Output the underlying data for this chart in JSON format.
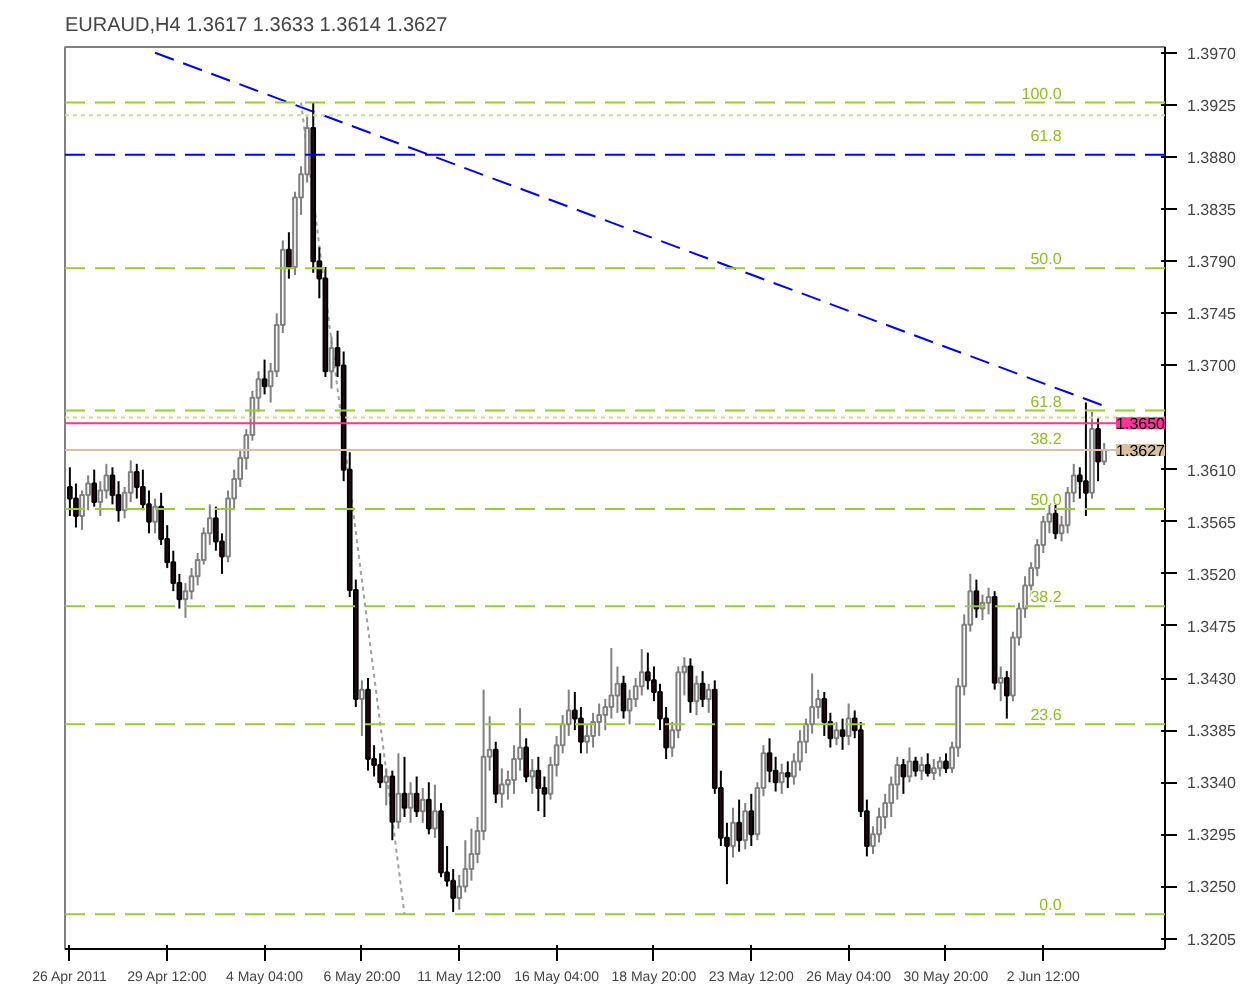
{
  "chart_data": {
    "type": "candlestick",
    "title": "EURAUD,H4  1.3617 1.3633 1.3614 1.3627",
    "categories": [
      "26 Apr 2011",
      null,
      null,
      null,
      null,
      null,
      null,
      null,
      null,
      null,
      null,
      null,
      null,
      null,
      null,
      null,
      "29 Apr 12:00",
      null,
      null,
      null,
      null,
      null,
      null,
      null,
      null,
      null,
      null,
      null,
      null,
      null,
      null,
      null,
      "4 May 04:00",
      null,
      null,
      null,
      null,
      null,
      null,
      null,
      null,
      null,
      null,
      null,
      null,
      null,
      null,
      null,
      "6 May 20:00",
      null,
      null,
      null,
      null,
      null,
      null,
      null,
      null,
      null,
      null,
      null,
      null,
      null,
      null,
      null,
      "11 May 12:00",
      null,
      null,
      null,
      null,
      null,
      null,
      null,
      null,
      null,
      null,
      null,
      null,
      null,
      null,
      null,
      "16 May 04:00",
      null,
      null,
      null,
      null,
      null,
      null,
      null,
      null,
      null,
      null,
      null,
      null,
      null,
      null,
      null,
      "18 May 20:00",
      null,
      null,
      null,
      null,
      null,
      null,
      null,
      null,
      null,
      null,
      null,
      null,
      null,
      null,
      null,
      "23 May 12:00",
      null,
      null,
      null,
      null,
      null,
      null,
      null,
      null,
      null,
      null,
      null,
      null,
      null,
      null,
      null,
      "26 May 04:00",
      null,
      null,
      null,
      null,
      null,
      null,
      null,
      null,
      null,
      null,
      null,
      null,
      null,
      null,
      null,
      "30 May 20:00",
      null,
      null,
      null,
      null,
      null,
      null,
      null,
      null,
      null,
      null,
      null,
      null,
      null,
      null,
      null,
      "2 Jun 12:00",
      null,
      null,
      null,
      null,
      null,
      null,
      null,
      null,
      null,
      null
    ],
    "ohlc": [
      [
        1.3595,
        1.3612,
        1.357,
        1.3585
      ],
      [
        1.3585,
        1.3598,
        1.356,
        1.357
      ],
      [
        1.357,
        1.3592,
        1.3558,
        1.3588
      ],
      [
        1.3588,
        1.3605,
        1.3575,
        1.3598
      ],
      [
        1.3598,
        1.361,
        1.3578,
        1.3582
      ],
      [
        1.3582,
        1.36,
        1.357,
        1.3592
      ],
      [
        1.3592,
        1.3615,
        1.3585,
        1.3605
      ],
      [
        1.3605,
        1.3612,
        1.358,
        1.3588
      ],
      [
        1.3588,
        1.36,
        1.3565,
        1.3575
      ],
      [
        1.3575,
        1.3595,
        1.3568,
        1.359
      ],
      [
        1.359,
        1.3618,
        1.3582,
        1.3608
      ],
      [
        1.3608,
        1.3615,
        1.3585,
        1.3595
      ],
      [
        1.3595,
        1.361,
        1.3575,
        1.358
      ],
      [
        1.358,
        1.3592,
        1.3555,
        1.3565
      ],
      [
        1.3565,
        1.3585,
        1.3555,
        1.3578
      ],
      [
        1.3578,
        1.359,
        1.3545,
        1.355
      ],
      [
        1.355,
        1.3562,
        1.3525,
        1.353
      ],
      [
        1.353,
        1.354,
        1.3505,
        1.3512
      ],
      [
        1.3512,
        1.352,
        1.349,
        1.3498
      ],
      [
        1.3498,
        1.3512,
        1.3482,
        1.3505
      ],
      [
        1.3505,
        1.3525,
        1.3498,
        1.3518
      ],
      [
        1.3518,
        1.3538,
        1.351,
        1.3532
      ],
      [
        1.3532,
        1.356,
        1.3528,
        1.3555
      ],
      [
        1.3555,
        1.358,
        1.3545,
        1.3568
      ],
      [
        1.3568,
        1.3578,
        1.354,
        1.3548
      ],
      [
        1.3548,
        1.3555,
        1.352,
        1.3535
      ],
      [
        1.3535,
        1.3592,
        1.353,
        1.3585
      ],
      [
        1.3585,
        1.361,
        1.3575,
        1.3602
      ],
      [
        1.3602,
        1.3628,
        1.3595,
        1.362
      ],
      [
        1.362,
        1.3645,
        1.361,
        1.364
      ],
      [
        1.364,
        1.3678,
        1.3635,
        1.3672
      ],
      [
        1.3672,
        1.3695,
        1.366,
        1.3688
      ],
      [
        1.3688,
        1.3705,
        1.3675,
        1.3682
      ],
      [
        1.3682,
        1.3702,
        1.3668,
        1.3695
      ],
      [
        1.3695,
        1.3745,
        1.369,
        1.3735
      ],
      [
        1.3735,
        1.3808,
        1.3728,
        1.38
      ],
      [
        1.38,
        1.3815,
        1.3775,
        1.3785
      ],
      [
        1.3785,
        1.385,
        1.3778,
        1.3845
      ],
      [
        1.3845,
        1.3872,
        1.383,
        1.3865
      ],
      [
        1.3865,
        1.3915,
        1.3858,
        1.3905
      ],
      [
        1.3905,
        1.3927,
        1.378,
        1.379
      ],
      [
        1.379,
        1.3802,
        1.3758,
        1.3775
      ],
      [
        1.3775,
        1.3785,
        1.369,
        1.3695
      ],
      [
        1.3695,
        1.3725,
        1.368,
        1.3715
      ],
      [
        1.3715,
        1.373,
        1.369,
        1.37
      ],
      [
        1.37,
        1.3712,
        1.36,
        1.361
      ],
      [
        1.361,
        1.3625,
        1.35,
        1.3506
      ],
      [
        1.3506,
        1.3515,
        1.3405,
        1.3412
      ],
      [
        1.3412,
        1.3428,
        1.338,
        1.342
      ],
      [
        1.342,
        1.343,
        1.335,
        1.336
      ],
      [
        1.336,
        1.3372,
        1.3345,
        1.3355
      ],
      [
        1.3355,
        1.3365,
        1.3335,
        1.334
      ],
      [
        1.334,
        1.3352,
        1.332,
        1.3345
      ],
      [
        1.3345,
        1.335,
        1.329,
        1.3306
      ],
      [
        1.3306,
        1.3365,
        1.33,
        1.333
      ],
      [
        1.333,
        1.3362,
        1.331,
        1.3318
      ],
      [
        1.3318,
        1.334,
        1.3305,
        1.333
      ],
      [
        1.333,
        1.3345,
        1.331,
        1.3315
      ],
      [
        1.3315,
        1.3335,
        1.3305,
        1.3325
      ],
      [
        1.3325,
        1.334,
        1.3295,
        1.33
      ],
      [
        1.33,
        1.3338,
        1.3292,
        1.3315
      ],
      [
        1.3315,
        1.3322,
        1.3258,
        1.3262
      ],
      [
        1.3262,
        1.3285,
        1.325,
        1.3255
      ],
      [
        1.3255,
        1.3265,
        1.3228,
        1.324
      ],
      [
        1.324,
        1.326,
        1.323,
        1.325
      ],
      [
        1.325,
        1.329,
        1.3245,
        1.3265
      ],
      [
        1.3265,
        1.33,
        1.3255,
        1.3278
      ],
      [
        1.3278,
        1.331,
        1.327,
        1.3298
      ],
      [
        1.3298,
        1.342,
        1.329,
        1.3362
      ],
      [
        1.3362,
        1.3397,
        1.335,
        1.3368
      ],
      [
        1.3368,
        1.3375,
        1.3322,
        1.333
      ],
      [
        1.333,
        1.3352,
        1.3318,
        1.3338
      ],
      [
        1.3338,
        1.335,
        1.3325,
        1.3342
      ],
      [
        1.3342,
        1.3372,
        1.333,
        1.336
      ],
      [
        1.336,
        1.3404,
        1.335,
        1.337
      ],
      [
        1.337,
        1.3378,
        1.334,
        1.3345
      ],
      [
        1.3345,
        1.336,
        1.333,
        1.335
      ],
      [
        1.335,
        1.3362,
        1.3315,
        1.3335
      ],
      [
        1.3335,
        1.3345,
        1.331,
        1.333
      ],
      [
        1.333,
        1.3362,
        1.3325,
        1.3355
      ],
      [
        1.3355,
        1.338,
        1.3345,
        1.3372
      ],
      [
        1.3372,
        1.3398,
        1.3365,
        1.339
      ],
      [
        1.339,
        1.342,
        1.338,
        1.3402
      ],
      [
        1.3402,
        1.3418,
        1.3385,
        1.3395
      ],
      [
        1.3395,
        1.3405,
        1.3365,
        1.3375
      ],
      [
        1.3375,
        1.339,
        1.3365,
        1.338
      ],
      [
        1.338,
        1.34,
        1.337,
        1.3392
      ],
      [
        1.3392,
        1.3408,
        1.338,
        1.3398
      ],
      [
        1.3398,
        1.3412,
        1.3385,
        1.3405
      ],
      [
        1.3405,
        1.3456,
        1.3395,
        1.3415
      ],
      [
        1.3415,
        1.344,
        1.34,
        1.3425
      ],
      [
        1.3425,
        1.3432,
        1.3395,
        1.3402
      ],
      [
        1.3402,
        1.342,
        1.339,
        1.3412
      ],
      [
        1.3412,
        1.343,
        1.3405,
        1.3423
      ],
      [
        1.3423,
        1.3455,
        1.3415,
        1.3435
      ],
      [
        1.3435,
        1.3452,
        1.342,
        1.3428
      ],
      [
        1.3428,
        1.344,
        1.341,
        1.3418
      ],
      [
        1.3418,
        1.3425,
        1.3385,
        1.3395
      ],
      [
        1.3395,
        1.3405,
        1.336,
        1.337
      ],
      [
        1.337,
        1.3392,
        1.3362,
        1.3385
      ],
      [
        1.3385,
        1.344,
        1.3378,
        1.3435
      ],
      [
        1.3435,
        1.3448,
        1.3415,
        1.344
      ],
      [
        1.344,
        1.3447,
        1.34,
        1.341
      ],
      [
        1.341,
        1.3432,
        1.3398,
        1.3425
      ],
      [
        1.3425,
        1.3436,
        1.3405,
        1.3412
      ],
      [
        1.3412,
        1.3425,
        1.34,
        1.342
      ],
      [
        1.342,
        1.3428,
        1.333,
        1.3335
      ],
      [
        1.3335,
        1.335,
        1.3285,
        1.3292
      ],
      [
        1.3292,
        1.3305,
        1.3252,
        1.3285
      ],
      [
        1.3285,
        1.3318,
        1.3275,
        1.3305
      ],
      [
        1.3305,
        1.3325,
        1.328,
        1.329
      ],
      [
        1.329,
        1.3322,
        1.3282,
        1.3315
      ],
      [
        1.3315,
        1.333,
        1.3285,
        1.3295
      ],
      [
        1.3295,
        1.334,
        1.329,
        1.3335
      ],
      [
        1.3335,
        1.3372,
        1.3328,
        1.3365
      ],
      [
        1.3365,
        1.3378,
        1.334,
        1.335
      ],
      [
        1.335,
        1.3362,
        1.3332,
        1.334
      ],
      [
        1.334,
        1.3356,
        1.333,
        1.3348
      ],
      [
        1.3348,
        1.3358,
        1.3335,
        1.3345
      ],
      [
        1.3345,
        1.3365,
        1.3338,
        1.3358
      ],
      [
        1.3358,
        1.3385,
        1.335,
        1.3375
      ],
      [
        1.3375,
        1.3395,
        1.3365,
        1.339
      ],
      [
        1.339,
        1.3434,
        1.3382,
        1.3405
      ],
      [
        1.3405,
        1.342,
        1.3395,
        1.3412
      ],
      [
        1.3412,
        1.3418,
        1.338,
        1.3392
      ],
      [
        1.3392,
        1.34,
        1.337,
        1.3378
      ],
      [
        1.3378,
        1.3392,
        1.3372,
        1.3385
      ],
      [
        1.3385,
        1.3395,
        1.3368,
        1.338
      ],
      [
        1.338,
        1.3408,
        1.3372,
        1.3395
      ],
      [
        1.3395,
        1.3402,
        1.3378,
        1.3385
      ],
      [
        1.3385,
        1.3392,
        1.331,
        1.3315
      ],
      [
        1.3315,
        1.3325,
        1.3276,
        1.3285
      ],
      [
        1.3285,
        1.3302,
        1.3278,
        1.3295
      ],
      [
        1.3295,
        1.3318,
        1.3288,
        1.331
      ],
      [
        1.331,
        1.333,
        1.33,
        1.3322
      ],
      [
        1.3322,
        1.3345,
        1.331,
        1.3338
      ],
      [
        1.3338,
        1.3362,
        1.3325,
        1.3355
      ],
      [
        1.3355,
        1.336,
        1.333,
        1.3345
      ],
      [
        1.3345,
        1.337,
        1.334,
        1.3358
      ],
      [
        1.3358,
        1.3362,
        1.3345,
        1.335
      ],
      [
        1.335,
        1.3362,
        1.3342,
        1.3355
      ],
      [
        1.3355,
        1.3365,
        1.3345,
        1.3348
      ],
      [
        1.3348,
        1.336,
        1.3342,
        1.3352
      ],
      [
        1.3352,
        1.3362,
        1.3345,
        1.3358
      ],
      [
        1.3358,
        1.3365,
        1.3348,
        1.3352
      ],
      [
        1.3352,
        1.3375,
        1.3348,
        1.337
      ],
      [
        1.337,
        1.343,
        1.3362,
        1.3423
      ],
      [
        1.3423,
        1.3485,
        1.3415,
        1.3476
      ],
      [
        1.3476,
        1.352,
        1.347,
        1.3505
      ],
      [
        1.3505,
        1.3515,
        1.3482,
        1.349
      ],
      [
        1.349,
        1.3502,
        1.348,
        1.3495
      ],
      [
        1.3495,
        1.3508,
        1.3485,
        1.35
      ],
      [
        1.35,
        1.3505,
        1.342,
        1.3426
      ],
      [
        1.3426,
        1.344,
        1.341,
        1.343
      ],
      [
        1.343,
        1.3436,
        1.3395,
        1.3415
      ],
      [
        1.3415,
        1.347,
        1.341,
        1.3465
      ],
      [
        1.3465,
        1.3495,
        1.3458,
        1.349
      ],
      [
        1.349,
        1.3518,
        1.3482,
        1.351
      ],
      [
        1.351,
        1.353,
        1.35,
        1.3525
      ],
      [
        1.3525,
        1.355,
        1.3518,
        1.3545
      ],
      [
        1.3545,
        1.357,
        1.3538,
        1.3565
      ],
      [
        1.3565,
        1.3582,
        1.3555,
        1.3572
      ],
      [
        1.3572,
        1.358,
        1.355,
        1.3555
      ],
      [
        1.3555,
        1.357,
        1.3548,
        1.3562
      ],
      [
        1.3562,
        1.3595,
        1.3555,
        1.359
      ],
      [
        1.359,
        1.3615,
        1.3582,
        1.3605
      ],
      [
        1.3605,
        1.3612,
        1.3585,
        1.36
      ],
      [
        1.36,
        1.3668,
        1.357,
        1.359
      ],
      [
        1.359,
        1.366,
        1.3585,
        1.3645
      ],
      [
        1.3645,
        1.3655,
        1.36,
        1.3617
      ],
      [
        1.3617,
        1.3633,
        1.3614,
        1.3627
      ]
    ],
    "series": [
      {
        "type": "line",
        "color": "#0000ff",
        "line_style": "dashed",
        "values": [
          null,
          null,
          null,
          null,
          null,
          null,
          null,
          null,
          null,
          null,
          null,
          null,
          null,
          null,
          1.397,
          null,
          null,
          null,
          null,
          null,
          null,
          null,
          null,
          null,
          null,
          null,
          null,
          null,
          null,
          null,
          null,
          null,
          null,
          null,
          null,
          null,
          null,
          null,
          null,
          null,
          null,
          null,
          null,
          null,
          null,
          null,
          null,
          null,
          null,
          null,
          null,
          null,
          null,
          null,
          null,
          null,
          null,
          null,
          null,
          null,
          null,
          null,
          null,
          null,
          null,
          null,
          null,
          null,
          null,
          null,
          null,
          null,
          null,
          null,
          null,
          null,
          null,
          null,
          null,
          null,
          null,
          null,
          null,
          null,
          null,
          null,
          null,
          null,
          null,
          null,
          null,
          null,
          null,
          null,
          null,
          null,
          null,
          null,
          null,
          null,
          null,
          null,
          null,
          null,
          null,
          null,
          null,
          null,
          null,
          null,
          null,
          null,
          null,
          null,
          null,
          null,
          null,
          null,
          null,
          null,
          null,
          null,
          null,
          null,
          null,
          null,
          null,
          null,
          null,
          null,
          null,
          null,
          null,
          null,
          null,
          null,
          null,
          null,
          null,
          null,
          null,
          null,
          null,
          null,
          null,
          null,
          null,
          null,
          null,
          null,
          null,
          null,
          null,
          null,
          null,
          null,
          null,
          null,
          null,
          null,
          null,
          null,
          null,
          null,
          null,
          null,
          null,
          null,
          null,
          null,
          1.3665
        ]
      },
      {
        "type": "line",
        "color": "#a0a0a0",
        "line_style": "dotted",
        "values": [
          null,
          null,
          null,
          null,
          null,
          null,
          null,
          null,
          null,
          null,
          null,
          null,
          null,
          null,
          null,
          null,
          null,
          null,
          null,
          null,
          null,
          null,
          null,
          null,
          null,
          null,
          null,
          null,
          null,
          null,
          null,
          null,
          null,
          null,
          null,
          null,
          null,
          null,
          1.3927,
          null,
          null,
          null,
          null,
          null,
          null,
          null,
          null,
          null,
          null,
          null,
          null,
          null,
          null,
          null,
          null,
          1.3226,
          null,
          null,
          null,
          null,
          null,
          null,
          null,
          null,
          null,
          null,
          null,
          null,
          null,
          null,
          null,
          null,
          null,
          null,
          null,
          null,
          null,
          null,
          null,
          null,
          null,
          null,
          null,
          null,
          null,
          null,
          null,
          null,
          null,
          null,
          null,
          null,
          null,
          null,
          null,
          null,
          null,
          null,
          null,
          null,
          null,
          null,
          null,
          null,
          null,
          null,
          null,
          null,
          null,
          null,
          null,
          null,
          null,
          null,
          null,
          null,
          null,
          null,
          null,
          null,
          null,
          null,
          null,
          null,
          null,
          null,
          null,
          null,
          null,
          null,
          null,
          null,
          null,
          null,
          null,
          null,
          null,
          null,
          null,
          null,
          null,
          null,
          null,
          null,
          null,
          null,
          null,
          null,
          null,
          null,
          null,
          null,
          null,
          null,
          null,
          null,
          null,
          null,
          null,
          null,
          null,
          null,
          null,
          null,
          null,
          null,
          null,
          null,
          null,
          null,
          null
        ]
      }
    ],
    "annotations": [
      {
        "text": "100.0",
        "y": 1.3927
      },
      {
        "text": "61.8",
        "y": 1.3916
      },
      {
        "text": "50.0",
        "y": 1.3784
      },
      {
        "text": "61.8",
        "y": 1.3661
      },
      {
        "text": "38.2",
        "y": 1.3655
      },
      {
        "text": "50.0",
        "y": 1.3576
      },
      {
        "text": "38.2",
        "y": 1.3492
      },
      {
        "text": "23.6",
        "y": 1.339
      },
      {
        "text": "0.0",
        "y": 1.3226
      }
    ],
    "ylim": [
      1.3196,
      1.3975
    ],
    "yticks": [
      {
        "value": 1.3205,
        "label": "1.3205"
      },
      {
        "value": 1.325,
        "label": "1.3250"
      },
      {
        "value": 1.3295,
        "label": "1.3295"
      },
      {
        "value": 1.334,
        "label": "1.3340"
      },
      {
        "value": 1.3385,
        "label": "1.3385"
      },
      {
        "value": 1.343,
        "label": "1.3430"
      },
      {
        "value": 1.3475,
        "label": "1.3475"
      },
      {
        "value": 1.352,
        "label": "1.3520"
      },
      {
        "value": 1.3565,
        "label": "1.3565"
      },
      {
        "value": 1.361,
        "label": "1.3610"
      },
      {
        "value": 1.37,
        "label": "1.3700"
      },
      {
        "value": 1.3745,
        "label": "1.3745"
      },
      {
        "value": 1.379,
        "label": "1.3790"
      },
      {
        "value": 1.3835,
        "label": "1.3835"
      },
      {
        "value": 1.388,
        "label": "1.3880"
      },
      {
        "value": 1.3925,
        "label": "1.3925"
      },
      {
        "value": 1.397,
        "label": "1.3970"
      }
    ],
    "ref_lines": [
      {
        "axis": "y",
        "value": 1.3927,
        "color": "#9acd32",
        "line_style": "dashed"
      },
      {
        "axis": "y",
        "value": 1.3916,
        "color": "#c8e08c",
        "line_style": "dotted"
      },
      {
        "axis": "y",
        "value": 1.3882,
        "color": "#0000ff",
        "line_style": "dashed"
      },
      {
        "axis": "y",
        "value": 1.3784,
        "color": "#9acd32",
        "line_style": "dashed"
      },
      {
        "axis": "y",
        "value": 1.3661,
        "color": "#9acd32",
        "line_style": "dashed"
      },
      {
        "axis": "y",
        "value": 1.3655,
        "color": "#c8e08c",
        "line_style": "dotted"
      },
      {
        "axis": "y",
        "value": 1.365,
        "label": "1.3650",
        "color": "#ff3399",
        "line_style": "solid"
      },
      {
        "axis": "y",
        "value": 1.3627,
        "label": "1.3627",
        "color": "#d8c0a0",
        "line_style": "solid"
      },
      {
        "axis": "y",
        "value": 1.3576,
        "color": "#9acd32",
        "line_style": "dashed"
      },
      {
        "axis": "y",
        "value": 1.3492,
        "color": "#9acd32",
        "line_style": "dashed"
      },
      {
        "axis": "y",
        "value": 1.339,
        "color": "#9acd32",
        "line_style": "dashed"
      },
      {
        "axis": "y",
        "value": 1.3226,
        "color": "#9acd32",
        "line_style": "dashed"
      }
    ]
  }
}
